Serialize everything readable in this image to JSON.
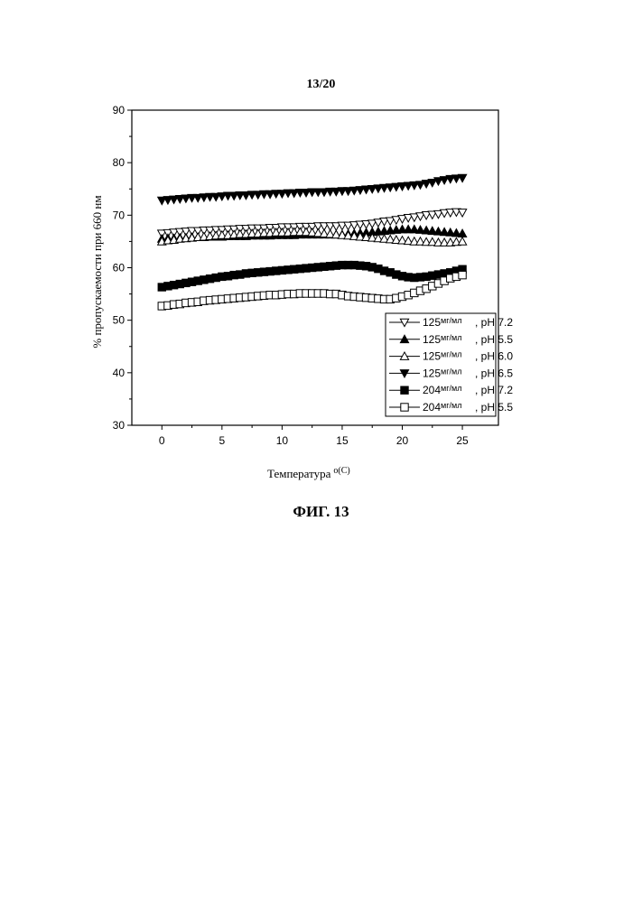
{
  "page": {
    "number": "13/20",
    "figure_caption": "ФИГ. 13"
  },
  "chart_data": {
    "type": "scatter",
    "xlabel": "Температура",
    "xlabel_unit": "o(C)",
    "ylabel": "% пропускаемости при 660 нм",
    "xlim": [
      -2.5,
      28
    ],
    "ylim": [
      30,
      90
    ],
    "x_ticks": [
      0,
      5,
      10,
      15,
      20,
      25
    ],
    "y_ticks": [
      30,
      40,
      50,
      60,
      70,
      80,
      90
    ],
    "grid": false,
    "legend_position": "bottom-right",
    "x": [
      0,
      0.5,
      1,
      1.5,
      2,
      2.5,
      3,
      3.5,
      4,
      4.5,
      5,
      5.5,
      6,
      6.5,
      7,
      7.5,
      8,
      8.5,
      9,
      9.5,
      10,
      10.5,
      11,
      11.5,
      12,
      12.5,
      13,
      13.5,
      14,
      14.5,
      15,
      15.5,
      16,
      16.5,
      17,
      17.5,
      18,
      18.5,
      19,
      19.5,
      20,
      20.5,
      21,
      21.5,
      22,
      22.5,
      23,
      23.5,
      24,
      24.5,
      25
    ],
    "series": [
      {
        "conc": "125",
        "unit": "мг/мл",
        "ph": ", pH 7.2",
        "marker": "triangle-down-open",
        "values": [
          66.5,
          66.6,
          66.7,
          66.8,
          66.9,
          67,
          67,
          67.1,
          67.1,
          67.2,
          67.2,
          67.3,
          67.3,
          67.4,
          67.4,
          67.5,
          67.5,
          67.5,
          67.6,
          67.6,
          67.7,
          67.7,
          67.7,
          67.8,
          67.8,
          67.8,
          67.9,
          67.9,
          67.9,
          67.9,
          68,
          68,
          68.1,
          68.2,
          68.3,
          68.4,
          68.6,
          68.8,
          68.9,
          69.1,
          69.3,
          69.5,
          69.6,
          69.8,
          70,
          70.1,
          70.2,
          70.4,
          70.5,
          70.6,
          70.5
        ]
      },
      {
        "conc": "125",
        "unit": "мг/мл",
        "ph": ", pH 5.5",
        "marker": "triangle-up-filled",
        "values": [
          65.5,
          65.6,
          65.6,
          65.7,
          65.7,
          65.8,
          65.8,
          65.8,
          65.9,
          65.9,
          65.9,
          66,
          66,
          66,
          66,
          66.1,
          66.1,
          66.1,
          66.1,
          66.2,
          66.2,
          66.2,
          66.2,
          66.3,
          66.3,
          66.3,
          66.3,
          66.3,
          66.3,
          66.3,
          66.3,
          66.4,
          66.5,
          66.6,
          66.7,
          66.8,
          66.9,
          67,
          67.1,
          67.2,
          67.3,
          67.3,
          67.3,
          67.2,
          67.1,
          67,
          66.9,
          66.8,
          66.7,
          66.6,
          66.5
        ]
      },
      {
        "conc": "125",
        "unit": "мг/мл",
        "ph": ", pH 6.0",
        "marker": "triangle-up-open",
        "values": [
          65,
          65.2,
          65.3,
          65.5,
          65.6,
          65.7,
          65.8,
          65.9,
          66,
          66.1,
          66.2,
          66.2,
          66.3,
          66.4,
          66.4,
          66.5,
          66.5,
          66.6,
          66.6,
          66.7,
          66.7,
          66.7,
          66.8,
          66.8,
          66.8,
          66.7,
          66.6,
          66.5,
          66.4,
          66.3,
          66.2,
          66.1,
          66,
          65.9,
          65.8,
          65.7,
          65.6,
          65.5,
          65.4,
          65.3,
          65.2,
          65.1,
          65,
          65,
          64.9,
          64.9,
          64.8,
          64.8,
          64.8,
          64.9,
          65
        ]
      },
      {
        "conc": "125",
        "unit": "мг/мл",
        "ph": ", pH 6.5",
        "marker": "triangle-down-filled",
        "values": [
          72.8,
          72.9,
          73,
          73.1,
          73.2,
          73.3,
          73.3,
          73.4,
          73.5,
          73.5,
          73.6,
          73.7,
          73.7,
          73.8,
          73.8,
          73.9,
          73.9,
          74,
          74,
          74.1,
          74.1,
          74.2,
          74.2,
          74.3,
          74.3,
          74.4,
          74.4,
          74.4,
          74.5,
          74.5,
          74.6,
          74.6,
          74.7,
          74.8,
          74.9,
          75,
          75.1,
          75.2,
          75.3,
          75.4,
          75.5,
          75.6,
          75.7,
          75.8,
          76,
          76.2,
          76.5,
          76.7,
          76.9,
          77,
          77.1
        ]
      },
      {
        "conc": "204",
        "unit": "мг/мл",
        "ph": ", pH 7.2",
        "marker": "square-filled",
        "values": [
          56.3,
          56.5,
          56.7,
          56.9,
          57.1,
          57.3,
          57.5,
          57.7,
          57.9,
          58.1,
          58.3,
          58.4,
          58.6,
          58.7,
          58.9,
          59,
          59.1,
          59.2,
          59.3,
          59.4,
          59.5,
          59.6,
          59.7,
          59.8,
          59.9,
          60,
          60.1,
          60.2,
          60.3,
          60.4,
          60.5,
          60.5,
          60.5,
          60.4,
          60.3,
          60.1,
          59.8,
          59.4,
          59.1,
          58.7,
          58.4,
          58.2,
          58.1,
          58.2,
          58.3,
          58.5,
          58.7,
          58.9,
          59.1,
          59.4,
          59.7
        ]
      },
      {
        "conc": "204",
        "unit": "мг/мл",
        "ph": ", pH 5.5",
        "marker": "square-open",
        "values": [
          52.7,
          52.8,
          53,
          53.1,
          53.3,
          53.4,
          53.5,
          53.7,
          53.8,
          53.9,
          54,
          54.1,
          54.2,
          54.3,
          54.4,
          54.5,
          54.6,
          54.7,
          54.8,
          54.8,
          54.9,
          55,
          55,
          55.1,
          55.1,
          55.1,
          55.1,
          55.1,
          55,
          55,
          54.8,
          54.6,
          54.5,
          54.4,
          54.3,
          54.2,
          54.1,
          54,
          54,
          54.2,
          54.5,
          54.8,
          55.2,
          55.6,
          56,
          56.5,
          57,
          57.5,
          58,
          58.3,
          58.6
        ]
      }
    ]
  }
}
